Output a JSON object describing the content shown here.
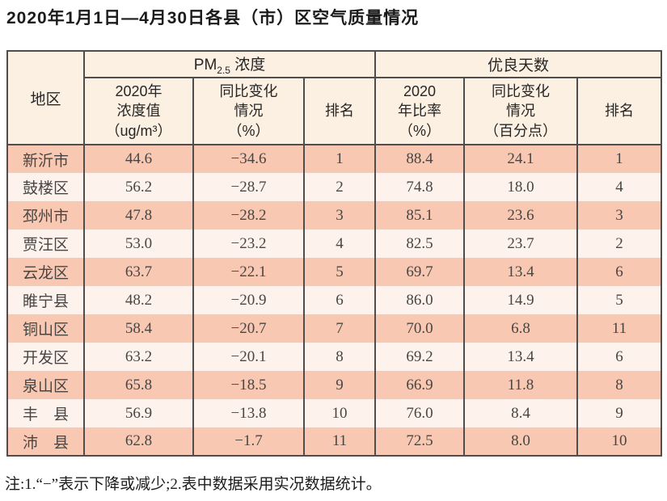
{
  "page": {
    "title": "2020年1月1日—4月30日各县（市）区空气质量情况",
    "footnote": "注:1.“−”表示下降或减少;2.表中数据采用实况数据统计。"
  },
  "chart_data": {
    "type": "table",
    "title": "2020年1月1日—4月30日各县（市）区空气质量情况",
    "region_header": "地区",
    "groups": {
      "pm25_prefix": "PM",
      "pm25_subscript": "2.5",
      "pm25_suffix": " 浓度",
      "good_days": "优良天数"
    },
    "sub_headers": {
      "pm_value": "2020年\n浓度值\n（ug/m³）",
      "pm_change": "同比变化\n情况\n（%）",
      "pm_rank": "排名",
      "gd_ratio": "2020\n年比率\n（%）",
      "gd_change": "同比变化\n情况\n（百分点）",
      "gd_rank": "排名"
    },
    "rows": [
      {
        "region": "新沂市",
        "pm_value": "44.6",
        "pm_change": "−34.6",
        "pm_rank": "1",
        "gd_ratio": "88.4",
        "gd_change": "24.1",
        "gd_rank": "1"
      },
      {
        "region": "鼓楼区",
        "pm_value": "56.2",
        "pm_change": "−28.7",
        "pm_rank": "2",
        "gd_ratio": "74.8",
        "gd_change": "18.0",
        "gd_rank": "4"
      },
      {
        "region": "邳州市",
        "pm_value": "47.8",
        "pm_change": "−28.2",
        "pm_rank": "3",
        "gd_ratio": "85.1",
        "gd_change": "23.6",
        "gd_rank": "3"
      },
      {
        "region": "贾汪区",
        "pm_value": "53.0",
        "pm_change": "−23.2",
        "pm_rank": "4",
        "gd_ratio": "82.5",
        "gd_change": "23.7",
        "gd_rank": "2"
      },
      {
        "region": "云龙区",
        "pm_value": "63.7",
        "pm_change": "−22.1",
        "pm_rank": "5",
        "gd_ratio": "69.7",
        "gd_change": "13.4",
        "gd_rank": "6"
      },
      {
        "region": "睢宁县",
        "pm_value": "48.2",
        "pm_change": "−20.9",
        "pm_rank": "6",
        "gd_ratio": "86.0",
        "gd_change": "14.9",
        "gd_rank": "5"
      },
      {
        "region": "铜山区",
        "pm_value": "58.4",
        "pm_change": "−20.7",
        "pm_rank": "7",
        "gd_ratio": "70.0",
        "gd_change": "6.8",
        "gd_rank": "11"
      },
      {
        "region": "开发区",
        "pm_value": "63.2",
        "pm_change": "−20.1",
        "pm_rank": "8",
        "gd_ratio": "69.2",
        "gd_change": "13.4",
        "gd_rank": "6"
      },
      {
        "region": "泉山区",
        "pm_value": "65.8",
        "pm_change": "−18.5",
        "pm_rank": "9",
        "gd_ratio": "66.9",
        "gd_change": "11.8",
        "gd_rank": "8"
      },
      {
        "region": "丰　县",
        "pm_value": "56.9",
        "pm_change": "−13.8",
        "pm_rank": "10",
        "gd_ratio": "76.0",
        "gd_change": "8.4",
        "gd_rank": "9"
      },
      {
        "region": "沛　县",
        "pm_value": "62.8",
        "pm_change": "−1.7",
        "pm_rank": "11",
        "gd_ratio": "72.5",
        "gd_change": "8.0",
        "gd_rank": "10"
      }
    ]
  },
  "colors": {
    "row_odd": "#f8c8b2",
    "row_even": "#fdf3ec",
    "header_bg": "#fcf0e2",
    "border": "#4e4e4e",
    "title_text": "#1b1b1b",
    "cell_text": "#474644"
  }
}
